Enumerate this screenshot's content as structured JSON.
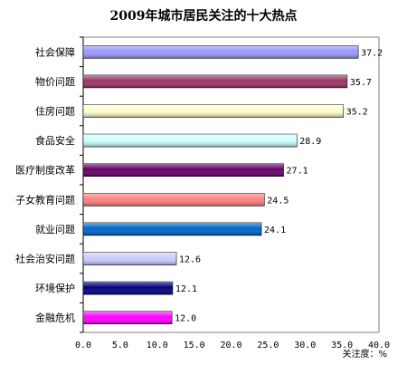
{
  "chart_data": {
    "type": "bar",
    "orientation": "horizontal",
    "title": "2009年城市居民关注的十大热点",
    "xlabel": "关注度：%",
    "xlim": [
      0,
      40
    ],
    "xticks": [
      "0.0",
      "5.0",
      "10.0",
      "15.0",
      "20.0",
      "25.0",
      "30.0",
      "35.0",
      "40.0"
    ],
    "grid": false,
    "legend": "none",
    "categories": [
      "社会保障",
      "物价问题",
      "住房问题",
      "食品安全",
      "医疗制度改革",
      "子女教育问题",
      "就业问题",
      "社会治安问题",
      "环境保护",
      "金融危机"
    ],
    "values": [
      37.2,
      35.7,
      35.2,
      28.9,
      27.1,
      24.5,
      24.1,
      12.6,
      12.1,
      12.0
    ],
    "value_labels": [
      "37.2",
      "35.7",
      "35.2",
      "28.9",
      "27.1",
      "24.5",
      "24.1",
      "12.6",
      "12.1",
      "12.0"
    ],
    "colors": [
      "#9999ff",
      "#993366",
      "#ffffcc",
      "#ccffff",
      "#660066",
      "#ff8080",
      "#0066cc",
      "#ccccff",
      "#000080",
      "#ff00ff"
    ]
  }
}
